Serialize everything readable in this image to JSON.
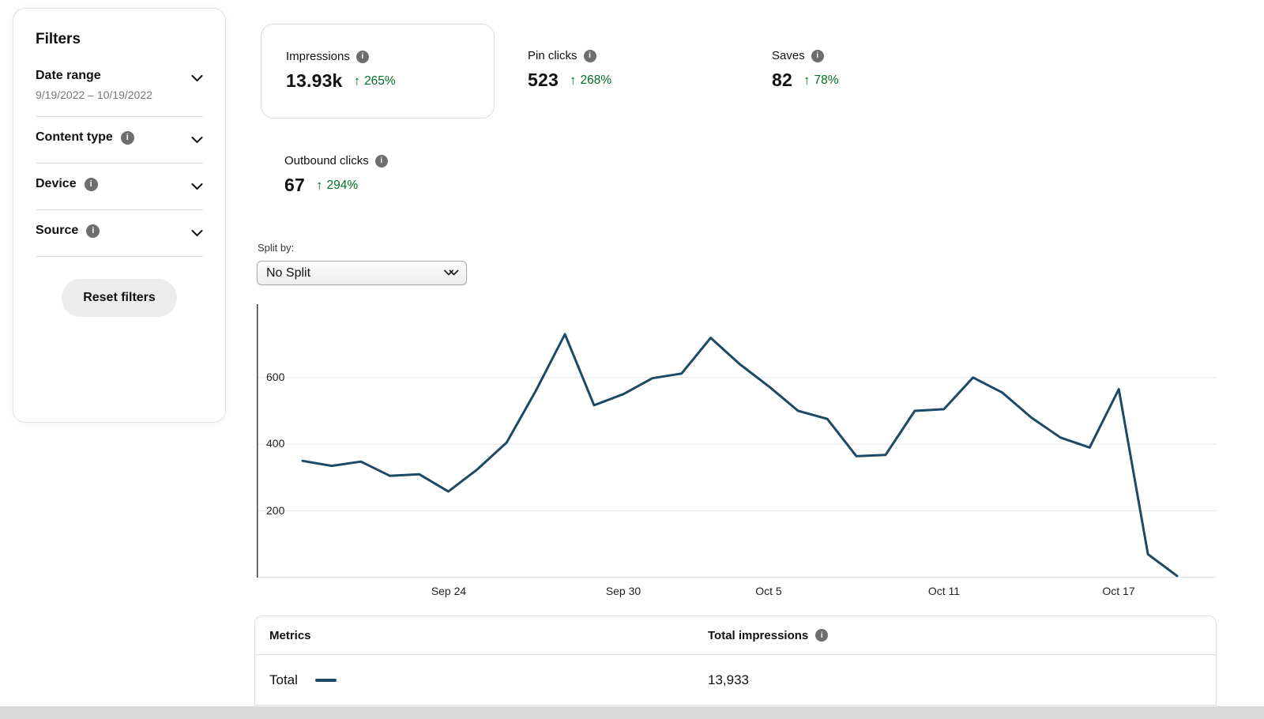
{
  "colors": {
    "line_navy": "#1c4966",
    "positive_green": "#006e24",
    "muted_text": "#767676"
  },
  "filters": {
    "title": "Filters",
    "items": [
      {
        "label": "Date range",
        "sublabel": "9/19/2022 – 10/19/2022",
        "has_info": false
      },
      {
        "label": "Content type",
        "has_info": true
      },
      {
        "label": "Device",
        "has_info": true
      },
      {
        "label": "Source",
        "has_info": true
      }
    ],
    "reset_label": "Reset filters"
  },
  "metrics": [
    {
      "label": "Impressions",
      "value": "13.93k",
      "change": "265%",
      "selected": true
    },
    {
      "label": "Pin clicks",
      "value": "523",
      "change": "268%",
      "selected": false
    },
    {
      "label": "Saves",
      "value": "82",
      "change": "78%",
      "selected": false
    },
    {
      "label": "Outbound clicks",
      "value": "67",
      "change": "294%",
      "selected": false
    }
  ],
  "split_by": {
    "label": "Split by:",
    "selected_option": "No Split"
  },
  "chart_data": {
    "type": "line",
    "series_name": "Total",
    "x": [
      "9/19",
      "9/20",
      "9/21",
      "9/22",
      "9/23",
      "9/24",
      "9/25",
      "9/26",
      "9/27",
      "9/28",
      "9/29",
      "9/30",
      "10/1",
      "10/2",
      "10/3",
      "10/4",
      "10/5",
      "10/6",
      "10/7",
      "10/8",
      "10/9",
      "10/10",
      "10/11",
      "10/12",
      "10/13",
      "10/14",
      "10/15",
      "10/16",
      "10/17",
      "10/18",
      "10/19"
    ],
    "values": [
      350,
      335,
      348,
      305,
      310,
      258,
      325,
      405,
      560,
      730,
      517,
      550,
      598,
      612,
      719,
      640,
      573,
      500,
      476,
      364,
      368,
      500,
      505,
      600,
      555,
      480,
      420,
      390,
      565,
      70,
      5
    ],
    "ylim": [
      0,
      820
    ],
    "yticks": [
      200,
      400,
      600
    ],
    "x_ticks": [
      {
        "index": 5,
        "label": "Sep 24"
      },
      {
        "index": 11,
        "label": "Sep 30"
      },
      {
        "index": 16,
        "label": "Oct 5"
      },
      {
        "index": 22,
        "label": "Oct 11"
      },
      {
        "index": 28,
        "label": "Oct 17"
      }
    ],
    "grid": "horizontal",
    "legend": "none",
    "line_color": "#1c4966",
    "total": "13,933"
  },
  "table": {
    "headers": {
      "metrics": "Metrics",
      "total_impressions": "Total impressions"
    },
    "rows": [
      {
        "name": "Total",
        "value": "13,933"
      }
    ]
  },
  "icons": {
    "info": "i",
    "up_arrow": "↑"
  }
}
